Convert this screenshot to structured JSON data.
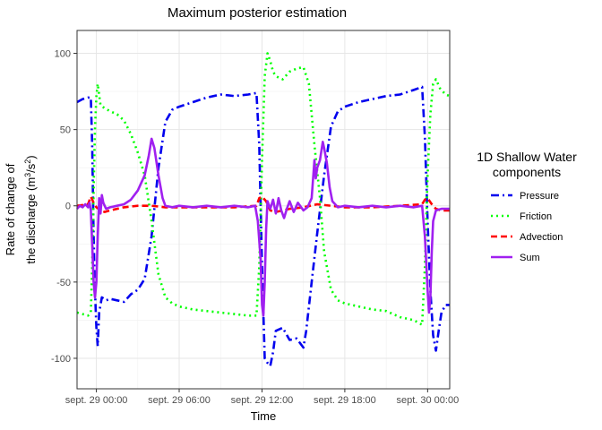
{
  "chart_data": {
    "type": "line",
    "title": "Maximum posterior estimation",
    "xlabel": "Time",
    "ylabel_line1": "Rate of change of",
    "ylabel_line2_prefix": "the discharge (m",
    "ylabel_sup1": "3",
    "ylabel_mid": "/s",
    "ylabel_sup2": "2",
    "ylabel_suffix": ")",
    "xlim": [
      -1.4,
      25.6
    ],
    "ylim": [
      -120,
      115
    ],
    "x_ticks": [
      {
        "value": 0,
        "label": "sept. 29 00:00"
      },
      {
        "value": 6,
        "label": "sept. 29 06:00"
      },
      {
        "value": 12,
        "label": "sept. 29 12:00"
      },
      {
        "value": 18,
        "label": "sept. 29 18:00"
      },
      {
        "value": 24,
        "label": "sept. 30 00:00"
      }
    ],
    "y_ticks": [
      -100,
      -50,
      0,
      50,
      100
    ],
    "grid": true,
    "legend": {
      "title_line1": "1D Shallow Water",
      "title_line2": "components",
      "position": "right"
    },
    "series": [
      {
        "name": "Pressure",
        "color": "#0000ee",
        "dash": "9,4,2,4",
        "width": 2.6,
        "points": [
          [
            -1.4,
            68
          ],
          [
            -1.0,
            70
          ],
          [
            -0.6,
            71
          ],
          [
            -0.4,
            71
          ],
          [
            -0.3,
            40
          ],
          [
            -0.2,
            -20
          ],
          [
            -0.1,
            -55
          ],
          [
            0.0,
            -80
          ],
          [
            0.1,
            -92
          ],
          [
            0.2,
            -70
          ],
          [
            0.4,
            -60
          ],
          [
            0.7,
            -62
          ],
          [
            1.0,
            -61
          ],
          [
            1.5,
            -62
          ],
          [
            2.0,
            -63
          ],
          [
            2.5,
            -58
          ],
          [
            3.0,
            -55
          ],
          [
            3.5,
            -48
          ],
          [
            4.0,
            -20
          ],
          [
            4.5,
            25
          ],
          [
            5.0,
            55
          ],
          [
            5.5,
            63
          ],
          [
            6.0,
            65
          ],
          [
            7.0,
            68
          ],
          [
            8.0,
            71
          ],
          [
            9.0,
            73
          ],
          [
            10.0,
            72
          ],
          [
            11.0,
            73
          ],
          [
            11.6,
            74
          ],
          [
            11.8,
            40
          ],
          [
            12.0,
            -40
          ],
          [
            12.2,
            -100
          ],
          [
            12.4,
            -103
          ],
          [
            12.6,
            -105
          ],
          [
            12.8,
            -96
          ],
          [
            13.0,
            -82
          ],
          [
            13.5,
            -80
          ],
          [
            14.0,
            -88
          ],
          [
            14.5,
            -87
          ],
          [
            15.0,
            -93
          ],
          [
            15.2,
            -82
          ],
          [
            15.6,
            -50
          ],
          [
            16.0,
            -18
          ],
          [
            16.5,
            20
          ],
          [
            17.0,
            52
          ],
          [
            17.5,
            62
          ],
          [
            18.0,
            65
          ],
          [
            19.0,
            68
          ],
          [
            20.0,
            70
          ],
          [
            21.0,
            72
          ],
          [
            22.0,
            73
          ],
          [
            23.0,
            76
          ],
          [
            23.6,
            78
          ],
          [
            23.8,
            45
          ],
          [
            24.0,
            -10
          ],
          [
            24.2,
            -55
          ],
          [
            24.4,
            -85
          ],
          [
            24.6,
            -95
          ],
          [
            24.8,
            -82
          ],
          [
            25.0,
            -70
          ],
          [
            25.3,
            -65
          ],
          [
            25.6,
            -65
          ]
        ]
      },
      {
        "name": "Friction",
        "color": "#00ff00",
        "dash": "2,4",
        "width": 2.6,
        "points": [
          [
            -1.4,
            -70
          ],
          [
            -1.0,
            -71
          ],
          [
            -0.6,
            -72
          ],
          [
            -0.4,
            -70
          ],
          [
            -0.3,
            -40
          ],
          [
            -0.2,
            10
          ],
          [
            -0.1,
            50
          ],
          [
            0.0,
            72
          ],
          [
            0.1,
            80
          ],
          [
            0.3,
            66
          ],
          [
            0.6,
            64
          ],
          [
            1.0,
            62
          ],
          [
            1.5,
            60
          ],
          [
            2.0,
            56
          ],
          [
            2.5,
            47
          ],
          [
            3.0,
            35
          ],
          [
            3.5,
            20
          ],
          [
            4.0,
            -10
          ],
          [
            4.5,
            -45
          ],
          [
            5.0,
            -60
          ],
          [
            5.5,
            -64
          ],
          [
            6.0,
            -66
          ],
          [
            7.0,
            -68
          ],
          [
            8.0,
            -69
          ],
          [
            9.0,
            -70
          ],
          [
            10.0,
            -71
          ],
          [
            11.0,
            -72
          ],
          [
            11.6,
            -72
          ],
          [
            11.8,
            -40
          ],
          [
            12.0,
            30
          ],
          [
            12.2,
            85
          ],
          [
            12.4,
            100
          ],
          [
            12.6,
            95
          ],
          [
            12.8,
            88
          ],
          [
            13.0,
            85
          ],
          [
            13.5,
            83
          ],
          [
            14.0,
            88
          ],
          [
            14.5,
            90
          ],
          [
            15.0,
            91
          ],
          [
            15.4,
            80
          ],
          [
            15.8,
            40
          ],
          [
            16.2,
            5
          ],
          [
            16.5,
            -30
          ],
          [
            17.0,
            -55
          ],
          [
            17.5,
            -62
          ],
          [
            18.0,
            -64
          ],
          [
            19.0,
            -66
          ],
          [
            20.0,
            -68
          ],
          [
            21.0,
            -69
          ],
          [
            22.0,
            -73
          ],
          [
            23.0,
            -75
          ],
          [
            23.6,
            -78
          ],
          [
            23.8,
            -40
          ],
          [
            24.0,
            20
          ],
          [
            24.2,
            60
          ],
          [
            24.4,
            80
          ],
          [
            24.6,
            83
          ],
          [
            24.9,
            77
          ],
          [
            25.3,
            73
          ],
          [
            25.6,
            72
          ]
        ]
      },
      {
        "name": "Advection",
        "color": "#ff0000",
        "dash": "7,4",
        "width": 2.6,
        "points": [
          [
            -1.4,
            0
          ],
          [
            -1.0,
            0.5
          ],
          [
            -0.6,
            1
          ],
          [
            -0.4,
            6
          ],
          [
            -0.2,
            2
          ],
          [
            0.0,
            -1
          ],
          [
            0.3,
            -3
          ],
          [
            0.6,
            -4
          ],
          [
            1.0,
            -3
          ],
          [
            1.5,
            -2
          ],
          [
            2.0,
            -1
          ],
          [
            3.0,
            0
          ],
          [
            4.0,
            0
          ],
          [
            5.0,
            -1
          ],
          [
            6.0,
            -1
          ],
          [
            8.0,
            -1
          ],
          [
            10.0,
            -1
          ],
          [
            11.6,
            0
          ],
          [
            11.8,
            5
          ],
          [
            12.0,
            6
          ],
          [
            12.3,
            3
          ],
          [
            12.6,
            -3
          ],
          [
            13.0,
            -4
          ],
          [
            13.5,
            -3
          ],
          [
            14.0,
            -2
          ],
          [
            15.0,
            -1
          ],
          [
            15.5,
            0
          ],
          [
            16.0,
            1
          ],
          [
            17.0,
            0
          ],
          [
            18.0,
            -1
          ],
          [
            20.0,
            -1
          ],
          [
            22.0,
            0
          ],
          [
            23.6,
            1
          ],
          [
            23.8,
            4
          ],
          [
            24.0,
            5
          ],
          [
            24.3,
            1
          ],
          [
            24.6,
            -2
          ],
          [
            25.0,
            -3
          ],
          [
            25.6,
            -3
          ]
        ]
      },
      {
        "name": "Sum",
        "color": "#a020f0",
        "dash": "",
        "width": 2.6,
        "points": [
          [
            -1.4,
            -2
          ],
          [
            -1.2,
            0
          ],
          [
            -1.0,
            -1
          ],
          [
            -0.8,
            1
          ],
          [
            -0.6,
            -1
          ],
          [
            -0.5,
            2
          ],
          [
            -0.4,
            -3
          ],
          [
            -0.3,
            -25
          ],
          [
            -0.2,
            -50
          ],
          [
            -0.1,
            -60
          ],
          [
            0.0,
            -50
          ],
          [
            0.1,
            -20
          ],
          [
            0.2,
            5
          ],
          [
            0.3,
            -5
          ],
          [
            0.4,
            7
          ],
          [
            0.5,
            2
          ],
          [
            0.7,
            -2
          ],
          [
            1.0,
            -1
          ],
          [
            1.5,
            0
          ],
          [
            2.0,
            1
          ],
          [
            2.5,
            4
          ],
          [
            3.0,
            10
          ],
          [
            3.5,
            20
          ],
          [
            3.8,
            33
          ],
          [
            4.0,
            44
          ],
          [
            4.2,
            38
          ],
          [
            4.5,
            20
          ],
          [
            4.8,
            5
          ],
          [
            5.0,
            0
          ],
          [
            5.5,
            -1
          ],
          [
            6.0,
            0
          ],
          [
            7.0,
            -1
          ],
          [
            8.0,
            0
          ],
          [
            9.0,
            -1
          ],
          [
            10.0,
            0
          ],
          [
            11.0,
            -1
          ],
          [
            11.5,
            0
          ],
          [
            11.7,
            -10
          ],
          [
            11.9,
            -35
          ],
          [
            12.0,
            -65
          ],
          [
            12.1,
            -72
          ],
          [
            12.2,
            -50
          ],
          [
            12.3,
            -15
          ],
          [
            12.4,
            3
          ],
          [
            12.6,
            -2
          ],
          [
            12.8,
            4
          ],
          [
            13.0,
            -5
          ],
          [
            13.2,
            5
          ],
          [
            13.4,
            -3
          ],
          [
            13.6,
            -8
          ],
          [
            13.8,
            -2
          ],
          [
            14.0,
            3
          ],
          [
            14.3,
            -4
          ],
          [
            14.6,
            2
          ],
          [
            15.0,
            -3
          ],
          [
            15.3,
            -1
          ],
          [
            15.6,
            5
          ],
          [
            15.8,
            30
          ],
          [
            15.9,
            18
          ],
          [
            16.0,
            25
          ],
          [
            16.2,
            30
          ],
          [
            16.4,
            42
          ],
          [
            16.5,
            38
          ],
          [
            16.7,
            28
          ],
          [
            16.9,
            12
          ],
          [
            17.1,
            3
          ],
          [
            17.5,
            -1
          ],
          [
            18.0,
            0
          ],
          [
            19.0,
            -1
          ],
          [
            20.0,
            0
          ],
          [
            21.0,
            -1
          ],
          [
            22.0,
            0
          ],
          [
            23.0,
            -1
          ],
          [
            23.6,
            0
          ],
          [
            23.8,
            -20
          ],
          [
            24.0,
            -55
          ],
          [
            24.1,
            -70
          ],
          [
            24.2,
            -60
          ],
          [
            24.3,
            -30
          ],
          [
            24.4,
            -10
          ],
          [
            24.6,
            -3
          ],
          [
            25.0,
            -2
          ],
          [
            25.6,
            -2
          ]
        ]
      }
    ]
  }
}
